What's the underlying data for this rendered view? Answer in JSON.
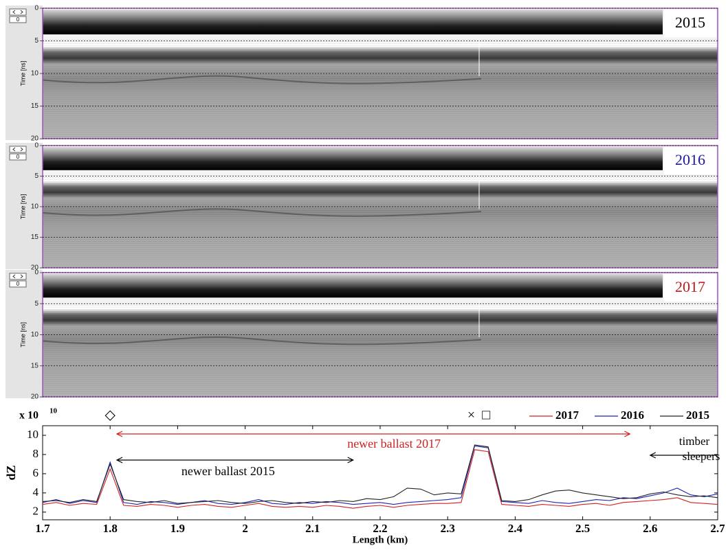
{
  "chart_data": [
    {
      "type": "radargram",
      "label": "2015",
      "label_color": "#000000",
      "y_label": "Time [ns]",
      "counter": "0",
      "ylim": [
        0,
        20
      ],
      "yticks": [
        0,
        5,
        10,
        15,
        20
      ],
      "grid": true
    },
    {
      "type": "radargram",
      "label": "2016",
      "label_color": "#1a1aa0",
      "y_label": "Time [ns]",
      "counter": "0",
      "ylim": [
        0,
        20
      ],
      "yticks": [
        0,
        5,
        10,
        15,
        20
      ],
      "grid": true
    },
    {
      "type": "radargram",
      "label": "2017",
      "label_color": "#c01818",
      "y_label": "Time [ns]",
      "counter": "0",
      "ylim": [
        0,
        20
      ],
      "yticks": [
        0,
        5,
        10,
        15,
        20
      ],
      "grid": true
    },
    {
      "type": "line",
      "x_label": "Length (km)",
      "y_label": "dZ",
      "y_multiplier": {
        "base": "x 10",
        "exponent": "10"
      },
      "xlim": [
        1.7,
        2.7
      ],
      "xticks": [
        1.7,
        1.8,
        1.9,
        2,
        2.1,
        2.2,
        2.3,
        2.4,
        2.5,
        2.6,
        2.7
      ],
      "ylim": [
        1.2,
        11
      ],
      "yticks": [
        2,
        4,
        6,
        8,
        10
      ],
      "legend": "top-right",
      "x": [
        1.7,
        1.72,
        1.74,
        1.76,
        1.78,
        1.8,
        1.82,
        1.84,
        1.86,
        1.88,
        1.9,
        1.92,
        1.94,
        1.96,
        1.98,
        2.0,
        2.02,
        2.04,
        2.06,
        2.08,
        2.1,
        2.12,
        2.14,
        2.16,
        2.18,
        2.2,
        2.22,
        2.24,
        2.26,
        2.28,
        2.3,
        2.32,
        2.34,
        2.36,
        2.38,
        2.4,
        2.42,
        2.44,
        2.46,
        2.48,
        2.5,
        2.52,
        2.54,
        2.56,
        2.58,
        2.6,
        2.62,
        2.64,
        2.66,
        2.68,
        2.7
      ],
      "series": [
        {
          "name": "2017",
          "color": "#d02020",
          "values": [
            2.8,
            3.0,
            2.7,
            2.9,
            2.8,
            6.5,
            2.7,
            2.6,
            2.8,
            2.7,
            2.5,
            2.7,
            2.8,
            2.6,
            2.5,
            2.7,
            2.9,
            2.6,
            2.5,
            2.6,
            2.5,
            2.7,
            2.6,
            2.4,
            2.6,
            2.7,
            2.5,
            2.7,
            2.8,
            2.9,
            2.9,
            3.0,
            8.5,
            8.3,
            2.8,
            2.7,
            2.6,
            2.8,
            2.7,
            2.6,
            2.8,
            2.9,
            2.7,
            3.0,
            3.1,
            3.2,
            3.3,
            3.5,
            3.0,
            2.9,
            2.8
          ]
        },
        {
          "name": "2016",
          "color": "#2020b0",
          "values": [
            3.0,
            3.3,
            2.9,
            3.2,
            3.0,
            7.2,
            3.0,
            2.8,
            3.1,
            3.0,
            2.8,
            3.0,
            3.2,
            2.9,
            2.8,
            3.0,
            3.3,
            2.9,
            2.8,
            3.0,
            2.9,
            3.1,
            3.0,
            2.8,
            2.9,
            3.0,
            2.8,
            3.0,
            3.1,
            3.2,
            3.3,
            3.5,
            8.9,
            8.7,
            3.1,
            3.0,
            2.9,
            3.2,
            3.0,
            2.9,
            3.1,
            3.3,
            3.2,
            3.5,
            3.4,
            3.7,
            4.0,
            4.5,
            3.8,
            3.6,
            3.9
          ]
        },
        {
          "name": "2015",
          "color": "#222222",
          "values": [
            3.1,
            3.2,
            3.0,
            3.3,
            3.1,
            7.0,
            3.3,
            3.1,
            3.0,
            3.2,
            2.9,
            3.0,
            3.1,
            3.2,
            3.0,
            2.9,
            3.1,
            3.2,
            3.0,
            2.9,
            3.1,
            3.0,
            3.2,
            3.1,
            3.4,
            3.3,
            3.6,
            4.5,
            4.4,
            3.8,
            4.0,
            3.9,
            9.0,
            8.8,
            3.2,
            3.1,
            3.3,
            3.8,
            4.2,
            4.3,
            4.0,
            3.8,
            3.6,
            3.4,
            3.5,
            3.9,
            4.1,
            3.8,
            3.6,
            3.7,
            3.5
          ]
        }
      ],
      "annotations": [
        {
          "text": "newer ballast 2017",
          "color": "#d02020",
          "span": [
            1.81,
            2.57
          ]
        },
        {
          "text": "newer ballast 2015",
          "color": "#000000",
          "span": [
            1.81,
            2.16
          ]
        },
        {
          "text": "timber sleepers",
          "color": "#000000",
          "span": [
            2.6,
            2.7
          ]
        }
      ],
      "markers": [
        {
          "symbol": "◇",
          "x": 1.8
        },
        {
          "symbol": "×",
          "x": 2.335
        },
        {
          "symbol": "□",
          "x": 2.357
        }
      ]
    }
  ]
}
